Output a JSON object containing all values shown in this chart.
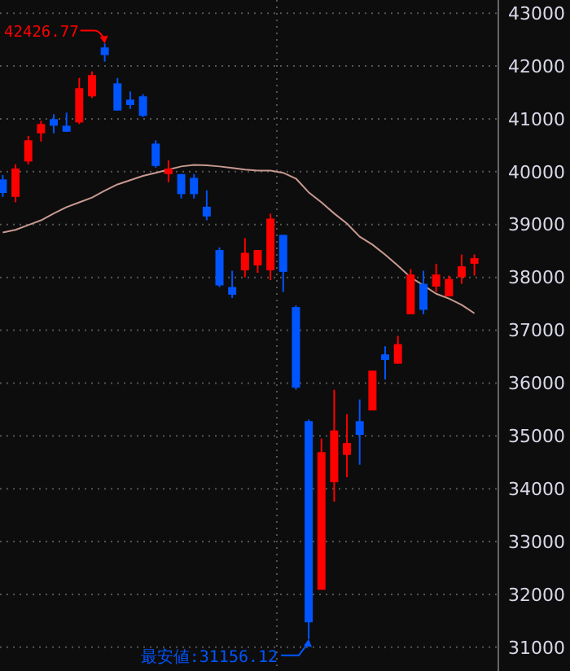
{
  "chart_data": {
    "type": "candlestick",
    "categories": [
      null,
      null,
      null,
      null,
      null,
      null,
      null,
      null,
      null,
      null,
      null,
      null,
      null,
      null,
      null,
      null,
      null,
      null,
      null,
      null,
      null,
      null,
      null,
      null,
      null,
      null,
      null,
      null,
      null,
      null,
      null,
      null,
      null,
      null,
      null,
      null,
      null,
      null
    ],
    "ohlc": [
      [
        39854,
        39937,
        39523,
        39597
      ],
      [
        39523,
        40140,
        39421,
        40060
      ],
      [
        40193,
        40677,
        40140,
        40594
      ],
      [
        40726,
        40964,
        40572,
        40902
      ],
      [
        40995,
        41087,
        40726,
        40871
      ],
      [
        40871,
        41118,
        40757,
        40757
      ],
      [
        40933,
        41775,
        40902,
        41581
      ],
      [
        41427,
        41899,
        41396,
        41828
      ],
      [
        42352,
        42426.77,
        42084,
        42207
      ],
      [
        41673,
        41775,
        41158,
        41158
      ],
      [
        41365,
        41519,
        41189,
        41263
      ],
      [
        41427,
        41467,
        41035,
        41056
      ],
      [
        40532,
        40594,
        40078,
        40109
      ],
      [
        39955,
        40214,
        39801,
        40060
      ],
      [
        39955,
        39955,
        39492,
        39576
      ],
      [
        39884,
        39955,
        39492,
        39576
      ],
      [
        39338,
        39647,
        39082,
        39153
      ],
      [
        38517,
        38567,
        37817,
        37848
      ],
      [
        37817,
        38126,
        37610,
        37672
      ],
      [
        38135,
        38743,
        38002,
        38465
      ],
      [
        38227,
        38517,
        38086,
        38517
      ],
      [
        38135,
        39206,
        37950,
        39113
      ],
      [
        38804,
        38804,
        37725,
        38104
      ],
      [
        37438,
        37469,
        35874,
        35914
      ],
      [
        35278,
        35309,
        31156.12,
        31471
      ],
      [
        32088,
        34948,
        32088,
        34692
      ],
      [
        34124,
        35874,
        33754,
        35102
      ],
      [
        34640,
        35411,
        34217,
        34865
      ],
      [
        35278,
        35689,
        34454,
        35019
      ],
      [
        35482,
        36235,
        35482,
        36235
      ],
      [
        36543,
        36697,
        36068,
        36438
      ],
      [
        36367,
        36892,
        36367,
        36737
      ],
      [
        37302,
        38157,
        37302,
        38055
      ],
      [
        37879,
        38126,
        37302,
        37385
      ],
      [
        37826,
        38258,
        37725,
        38055
      ],
      [
        37641,
        38033,
        37641,
        37971
      ],
      [
        38002,
        38434,
        37879,
        38209
      ],
      [
        38258,
        38434,
        38033,
        38363
      ]
    ],
    "colors": [
      "#0055ff",
      "#ff0000",
      "#ff0000",
      "#ff0000",
      "#0055ff",
      "#0055ff",
      "#ff0000",
      "#ff0000",
      "#0055ff",
      "#0055ff",
      "#0055ff",
      "#0055ff",
      "#0055ff",
      "#ff0000",
      "#0055ff",
      "#0055ff",
      "#0055ff",
      "#0055ff",
      "#0055ff",
      "#ff0000",
      "#ff0000",
      "#ff0000",
      "#0055ff",
      "#0055ff",
      "#0055ff",
      "#ff0000",
      "#ff0000",
      "#ff0000",
      "#0055ff",
      "#ff0000",
      "#0055ff",
      "#ff0000",
      "#ff0000",
      "#0055ff",
      "#ff0000",
      "#ff0000",
      "#ff0000",
      "#ff0000"
    ],
    "series": [
      {
        "type": "line",
        "color": "#c89a90",
        "values": [
          38850,
          38900,
          38990,
          39080,
          39210,
          39330,
          39420,
          39510,
          39640,
          39760,
          39840,
          39920,
          39980,
          40040,
          40100,
          40130,
          40120,
          40100,
          40070,
          40040,
          40020,
          40020,
          39980,
          39870,
          39610,
          39420,
          39210,
          39020,
          38770,
          38620,
          38430,
          38220,
          38000,
          37850,
          37690,
          37600,
          37480,
          37320
        ]
      }
    ],
    "ylim": [
      30550,
      43250
    ],
    "yticks": [
      31000,
      32000,
      33000,
      34000,
      35000,
      36000,
      37000,
      38000,
      39000,
      40000,
      41000,
      42000,
      43000
    ],
    "grid": "y",
    "annotations": [
      "42426.77",
      "最安値:31156.12"
    ]
  }
}
